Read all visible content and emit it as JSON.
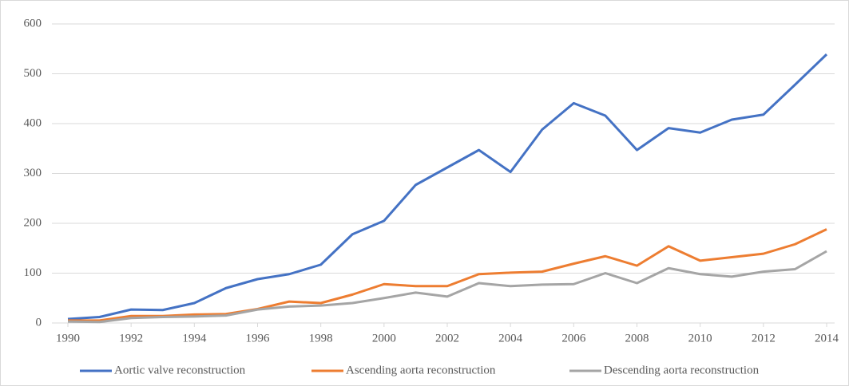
{
  "chart_data": {
    "type": "line",
    "x": [
      1990,
      1991,
      1992,
      1993,
      1994,
      1995,
      1996,
      1997,
      1998,
      1999,
      2000,
      2001,
      2002,
      2003,
      2004,
      2005,
      2006,
      2007,
      2008,
      2009,
      2010,
      2011,
      2012,
      2013,
      2014
    ],
    "series": [
      {
        "name": "Aortic valve reconstruction",
        "color": "#4472c4",
        "values": [
          8,
          12,
          27,
          26,
          40,
          70,
          88,
          98,
          117,
          178,
          205,
          277,
          312,
          347,
          303,
          388,
          441,
          416,
          347,
          391,
          382,
          408,
          418,
          478,
          539
        ]
      },
      {
        "name": "Ascending aorta reconstruction",
        "color": "#ed7d31",
        "values": [
          5,
          5,
          14,
          14,
          17,
          18,
          28,
          43,
          40,
          57,
          78,
          74,
          74,
          98,
          101,
          103,
          119,
          134,
          115,
          154,
          125,
          132,
          139,
          158,
          188
        ]
      },
      {
        "name": "Descending aorta reconstruction",
        "color": "#a5a5a5",
        "values": [
          3,
          2,
          10,
          12,
          13,
          15,
          27,
          33,
          35,
          40,
          50,
          61,
          53,
          80,
          74,
          77,
          78,
          100,
          80,
          110,
          98,
          93,
          103,
          108,
          144
        ]
      }
    ],
    "xlim": [
      1990,
      2014
    ],
    "xticks": [
      1990,
      1992,
      1994,
      1996,
      1998,
      2000,
      2002,
      2004,
      2006,
      2008,
      2010,
      2012,
      2014
    ],
    "ylim": [
      0,
      600
    ],
    "yticks": [
      0,
      100,
      200,
      300,
      400,
      500,
      600
    ],
    "grid": true,
    "legend": "bottom"
  }
}
